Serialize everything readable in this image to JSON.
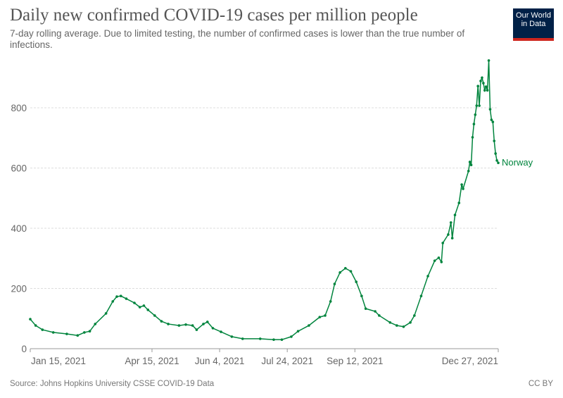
{
  "header": {
    "title": "Daily new confirmed COVID-19 cases per million people",
    "subtitle": "7-day rolling average. Due to limited testing, the number of confirmed cases is lower than the true number of infections.",
    "logo_text": "Our World in Data"
  },
  "footer": {
    "source": "Source: Johns Hopkins University CSSE COVID-19 Data",
    "license": "CC BY"
  },
  "chart_data": {
    "type": "line",
    "title": "Daily new confirmed COVID-19 cases per million people",
    "xlabel": "",
    "ylabel": "",
    "xlim": [
      "2021-01-15",
      "2021-12-27"
    ],
    "ylim": [
      0,
      960
    ],
    "y_ticks": [
      "0",
      "200",
      "400",
      "600",
      "800"
    ],
    "x_ticks": [
      {
        "date": "2021-01-15",
        "label": "Jan 15, 2021"
      },
      {
        "date": "2021-04-15",
        "label": "Apr 15, 2021"
      },
      {
        "date": "2021-06-04",
        "label": "Jun 4, 2021"
      },
      {
        "date": "2021-07-24",
        "label": "Jul 24, 2021"
      },
      {
        "date": "2021-09-12",
        "label": "Sep 12, 2021"
      },
      {
        "date": "2021-12-27",
        "label": "Dec 27, 2021"
      }
    ],
    "grid": true,
    "legend": "end-of-line label",
    "series": [
      {
        "name": "Norway",
        "color": "#00843d",
        "points": [
          [
            "2021-01-15",
            98
          ],
          [
            "2021-01-19",
            77
          ],
          [
            "2021-01-24",
            63
          ],
          [
            "2021-02-01",
            54
          ],
          [
            "2021-02-11",
            49
          ],
          [
            "2021-02-19",
            44
          ],
          [
            "2021-02-24",
            54
          ],
          [
            "2021-02-28",
            58
          ],
          [
            "2021-03-04",
            82
          ],
          [
            "2021-03-12",
            117
          ],
          [
            "2021-03-17",
            157
          ],
          [
            "2021-03-20",
            173
          ],
          [
            "2021-03-23",
            175
          ],
          [
            "2021-03-27",
            166
          ],
          [
            "2021-04-02",
            152
          ],
          [
            "2021-04-06",
            138
          ],
          [
            "2021-04-09",
            143
          ],
          [
            "2021-04-12",
            129
          ],
          [
            "2021-04-17",
            110
          ],
          [
            "2021-04-22",
            91
          ],
          [
            "2021-04-27",
            82
          ],
          [
            "2021-05-05",
            77
          ],
          [
            "2021-05-10",
            80
          ],
          [
            "2021-05-15",
            77
          ],
          [
            "2021-05-18",
            63
          ],
          [
            "2021-05-23",
            82
          ],
          [
            "2021-05-26",
            89
          ],
          [
            "2021-05-30",
            68
          ],
          [
            "2021-06-05",
            56
          ],
          [
            "2021-06-13",
            40
          ],
          [
            "2021-06-21",
            33
          ],
          [
            "2021-07-04",
            33
          ],
          [
            "2021-07-14",
            30
          ],
          [
            "2021-07-20",
            30
          ],
          [
            "2021-07-27",
            40
          ],
          [
            "2021-08-01",
            58
          ],
          [
            "2021-08-09",
            77
          ],
          [
            "2021-08-17",
            105
          ],
          [
            "2021-08-21",
            110
          ],
          [
            "2021-08-25",
            157
          ],
          [
            "2021-08-28",
            215
          ],
          [
            "2021-09-01",
            253
          ],
          [
            "2021-09-05",
            267
          ],
          [
            "2021-09-09",
            257
          ],
          [
            "2021-09-13",
            222
          ],
          [
            "2021-09-17",
            175
          ],
          [
            "2021-09-20",
            133
          ],
          [
            "2021-09-27",
            124
          ],
          [
            "2021-09-30",
            110
          ],
          [
            "2021-10-08",
            87
          ],
          [
            "2021-10-13",
            77
          ],
          [
            "2021-10-18",
            73
          ],
          [
            "2021-10-23",
            87
          ],
          [
            "2021-10-26",
            110
          ],
          [
            "2021-10-31",
            175
          ],
          [
            "2021-11-05",
            241
          ],
          [
            "2021-11-10",
            292
          ],
          [
            "2021-11-13",
            302
          ],
          [
            "2021-11-15",
            288
          ],
          [
            "2021-11-16",
            351
          ],
          [
            "2021-11-20",
            379
          ],
          [
            "2021-11-22",
            419
          ],
          [
            "2021-11-23",
            367
          ],
          [
            "2021-11-25",
            444
          ],
          [
            "2021-11-28",
            484
          ],
          [
            "2021-11-30",
            545
          ],
          [
            "2021-12-01",
            531
          ],
          [
            "2021-12-05",
            590
          ],
          [
            "2021-12-06",
            620
          ],
          [
            "2021-12-07",
            610
          ],
          [
            "2021-12-08",
            702
          ],
          [
            "2021-12-09",
            746
          ],
          [
            "2021-12-10",
            777
          ],
          [
            "2021-12-11",
            807
          ],
          [
            "2021-12-12",
            872
          ],
          [
            "2021-12-13",
            807
          ],
          [
            "2021-12-14",
            889
          ],
          [
            "2021-12-15",
            900
          ],
          [
            "2021-12-16",
            882
          ],
          [
            "2021-12-17",
            858
          ],
          [
            "2021-12-18",
            870
          ],
          [
            "2021-12-19",
            858
          ],
          [
            "2021-12-20",
            957
          ],
          [
            "2021-12-21",
            795
          ],
          [
            "2021-12-22",
            760
          ],
          [
            "2021-12-23",
            753
          ],
          [
            "2021-12-24",
            690
          ],
          [
            "2021-12-25",
            648
          ],
          [
            "2021-12-26",
            625
          ],
          [
            "2021-12-27",
            617
          ]
        ]
      }
    ]
  }
}
